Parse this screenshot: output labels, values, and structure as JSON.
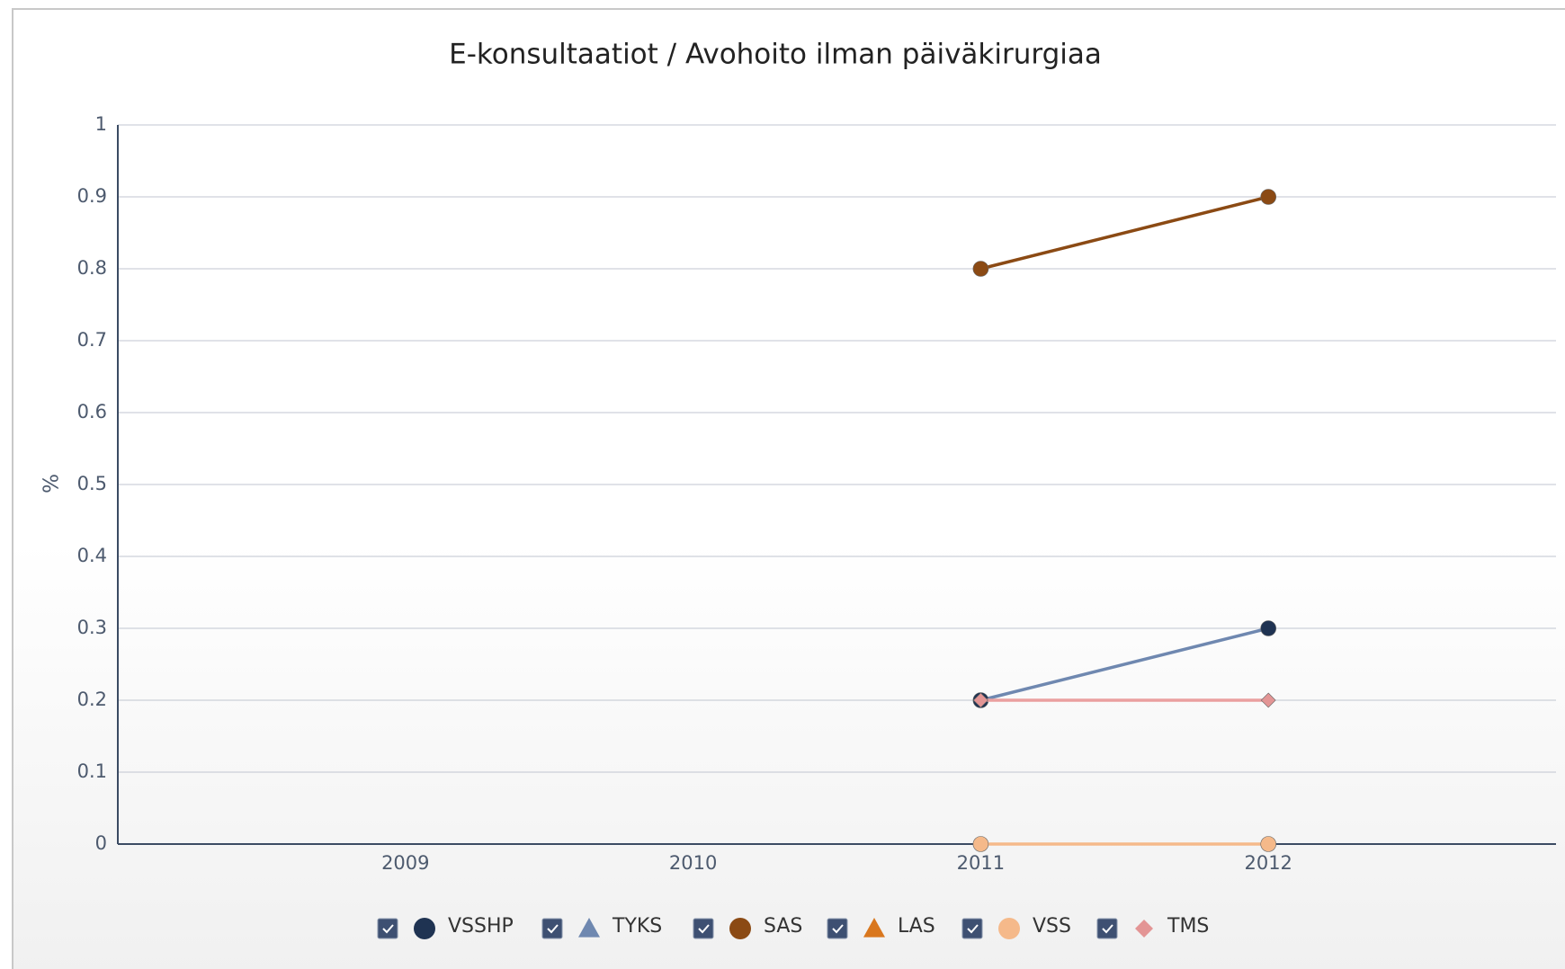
{
  "chart_data": {
    "type": "line",
    "title": "E-konsultaatiot / Avohoito ilman päiväkirurgiaa",
    "y_label": "%",
    "categories": [
      "2009",
      "2010",
      "2011",
      "2012"
    ],
    "series": [
      {
        "name": "VSSHP",
        "color": "#6f88b0",
        "marker_color": "#1f3352",
        "symbol": "circle",
        "values": [
          null,
          null,
          0.2,
          0.3
        ]
      },
      {
        "name": "TYKS",
        "color": "#6f88b0",
        "marker_color": "#6f88b0",
        "symbol": "triangle",
        "values": [
          null,
          null,
          null,
          null
        ]
      },
      {
        "name": "SAS",
        "color": "#8b4a14",
        "marker_color": "#8b4a14",
        "symbol": "circle",
        "values": [
          null,
          null,
          0.8,
          0.9
        ]
      },
      {
        "name": "LAS",
        "color": "#d9771e",
        "marker_color": "#d9771e",
        "symbol": "triangle",
        "values": [
          null,
          null,
          null,
          null
        ]
      },
      {
        "name": "VSS",
        "color": "#f5b98a",
        "marker_color": "#f5b98a",
        "symbol": "circle",
        "values": [
          null,
          null,
          0,
          0
        ]
      },
      {
        "name": "TMS",
        "color": "#eaa0a0",
        "marker_color": "#e39595",
        "symbol": "diamond",
        "values": [
          null,
          null,
          0.2,
          0.2
        ]
      }
    ],
    "ylim": [
      0,
      1
    ],
    "yticks": [
      0,
      0.1,
      0.2,
      0.3,
      0.4,
      0.5,
      0.6,
      0.7,
      0.8,
      0.9,
      1
    ],
    "grid": true
  }
}
